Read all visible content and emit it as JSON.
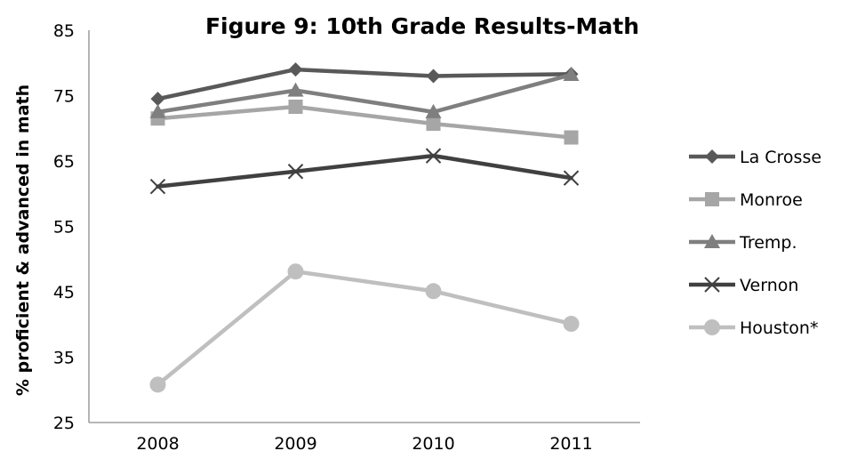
{
  "chart_data": {
    "type": "line",
    "title": "Figure 9: 10th Grade Results-Math",
    "xlabel": "",
    "ylabel": "% proficient & advanced in math",
    "x": [
      "2008",
      "2009",
      "2010",
      "2011"
    ],
    "ylim": [
      25,
      85
    ],
    "yticks": [
      25,
      35,
      45,
      55,
      65,
      75,
      85
    ],
    "grid": false,
    "legend_position": "right",
    "series": [
      {
        "name": "La Crosse",
        "marker": "diamond",
        "color": "#595959",
        "values": [
          74.5,
          79,
          78,
          78.3
        ]
      },
      {
        "name": "Monroe",
        "marker": "square",
        "color": "#a6a6a6",
        "values": [
          71.5,
          73.3,
          70.7,
          68.6
        ]
      },
      {
        "name": "Tremp.",
        "marker": "triangle",
        "color": "#7f7f7f",
        "values": [
          72.5,
          75.8,
          72.5,
          78.2
        ]
      },
      {
        "name": "Vernon",
        "marker": "x",
        "color": "#404040",
        "values": [
          61.1,
          63.4,
          65.8,
          62.4
        ]
      },
      {
        "name": "Houston*",
        "marker": "circle",
        "color": "#bfbfbf",
        "values": [
          30.8,
          48.1,
          45.1,
          40.1
        ]
      }
    ]
  }
}
